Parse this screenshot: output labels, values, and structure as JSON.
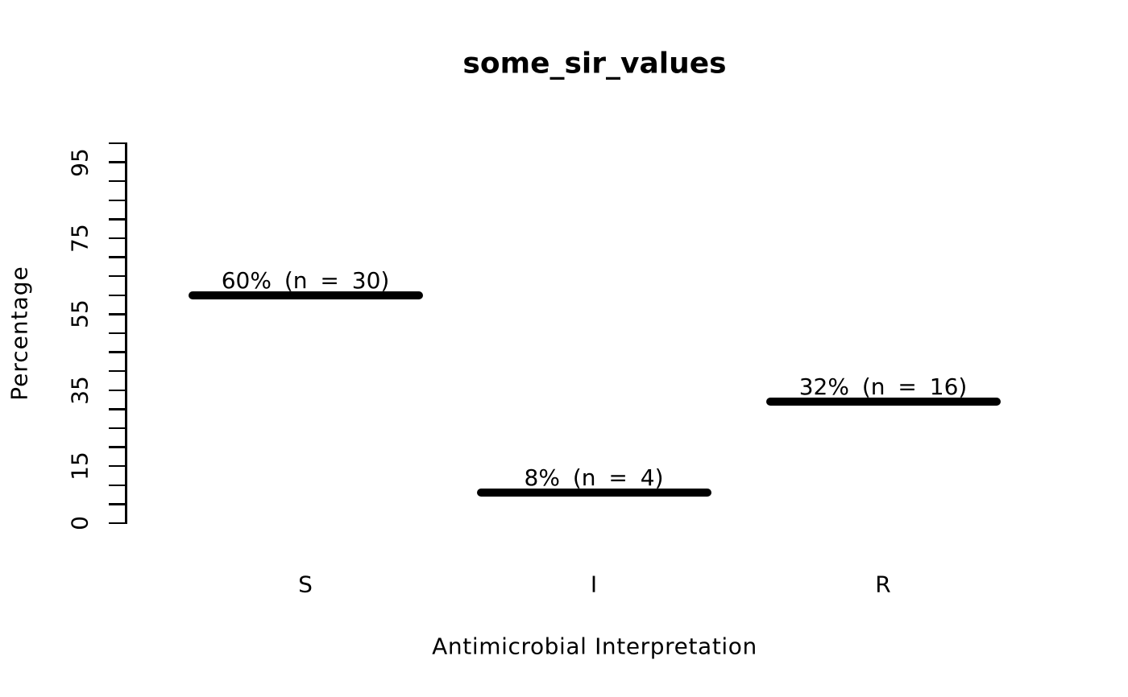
{
  "chart_data": {
    "type": "bar",
    "title": "some_sir_values",
    "xlabel": "Antimicrobial Interpretation",
    "ylabel": "Percentage",
    "categories": [
      "S",
      "I",
      "R"
    ],
    "values": [
      60,
      8,
      32
    ],
    "counts": [
      30,
      4,
      16
    ],
    "bar_labels": [
      "60% (n = 30)",
      "8% (n = 4)",
      "32% (n = 16)"
    ],
    "ylim": [
      0,
      100
    ],
    "tick_step": 5,
    "labeled_ticks": [
      0,
      15,
      35,
      55,
      75,
      95
    ],
    "bar_color": "#000000",
    "axis_color": "#000000",
    "text_color": "#000000",
    "background": "#ffffff",
    "grid": false,
    "legend": "none"
  }
}
